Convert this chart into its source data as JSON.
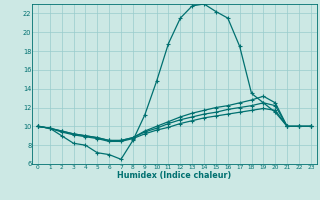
{
  "xlabel": "Humidex (Indice chaleur)",
  "bg_color": "#cce8e4",
  "grid_color": "#99cccc",
  "line_color": "#007070",
  "xlim": [
    -0.5,
    23.5
  ],
  "ylim": [
    6,
    23
  ],
  "yticks": [
    6,
    8,
    10,
    12,
    14,
    16,
    18,
    20,
    22
  ],
  "xticks": [
    0,
    1,
    2,
    3,
    4,
    5,
    6,
    7,
    8,
    9,
    10,
    11,
    12,
    13,
    14,
    15,
    16,
    17,
    18,
    19,
    20,
    21,
    22,
    23
  ],
  "line1_x": [
    0,
    1,
    2,
    3,
    4,
    5,
    6,
    7,
    8,
    9,
    10,
    11,
    12,
    13,
    14,
    15,
    16,
    17,
    18,
    19,
    20,
    21,
    22,
    23
  ],
  "line1_y": [
    10.0,
    9.8,
    9.0,
    8.2,
    8.0,
    7.2,
    7.0,
    6.5,
    8.5,
    11.2,
    14.8,
    18.8,
    21.5,
    22.8,
    23.0,
    22.2,
    21.5,
    18.5,
    13.5,
    12.5,
    11.5,
    10.0,
    10.0,
    10.0
  ],
  "line2_x": [
    0,
    1,
    2,
    3,
    4,
    5,
    6,
    7,
    8,
    9,
    10,
    11,
    12,
    13,
    14,
    15,
    16,
    17,
    18,
    19,
    20,
    21,
    22,
    23
  ],
  "line2_y": [
    10.0,
    9.8,
    9.5,
    9.2,
    9.0,
    8.8,
    8.5,
    8.5,
    8.8,
    9.5,
    10.0,
    10.5,
    11.0,
    11.4,
    11.7,
    12.0,
    12.2,
    12.5,
    12.8,
    13.2,
    12.5,
    10.0,
    10.0,
    10.0
  ],
  "line3_x": [
    0,
    1,
    2,
    3,
    4,
    5,
    6,
    7,
    8,
    9,
    10,
    11,
    12,
    13,
    14,
    15,
    16,
    17,
    18,
    19,
    20,
    21,
    22,
    23
  ],
  "line3_y": [
    10.0,
    9.8,
    9.5,
    9.2,
    9.0,
    8.8,
    8.5,
    8.5,
    8.8,
    9.4,
    9.8,
    10.3,
    10.7,
    11.0,
    11.3,
    11.5,
    11.8,
    12.0,
    12.2,
    12.5,
    12.2,
    10.0,
    10.0,
    10.0
  ],
  "line4_x": [
    0,
    1,
    2,
    3,
    4,
    5,
    6,
    7,
    8,
    9,
    10,
    11,
    12,
    13,
    14,
    15,
    16,
    17,
    18,
    19,
    20,
    21,
    22,
    23
  ],
  "line4_y": [
    10.0,
    9.8,
    9.4,
    9.1,
    8.9,
    8.7,
    8.4,
    8.4,
    8.7,
    9.2,
    9.6,
    9.9,
    10.3,
    10.6,
    10.9,
    11.1,
    11.3,
    11.5,
    11.7,
    11.9,
    11.7,
    10.0,
    10.0,
    10.0
  ]
}
